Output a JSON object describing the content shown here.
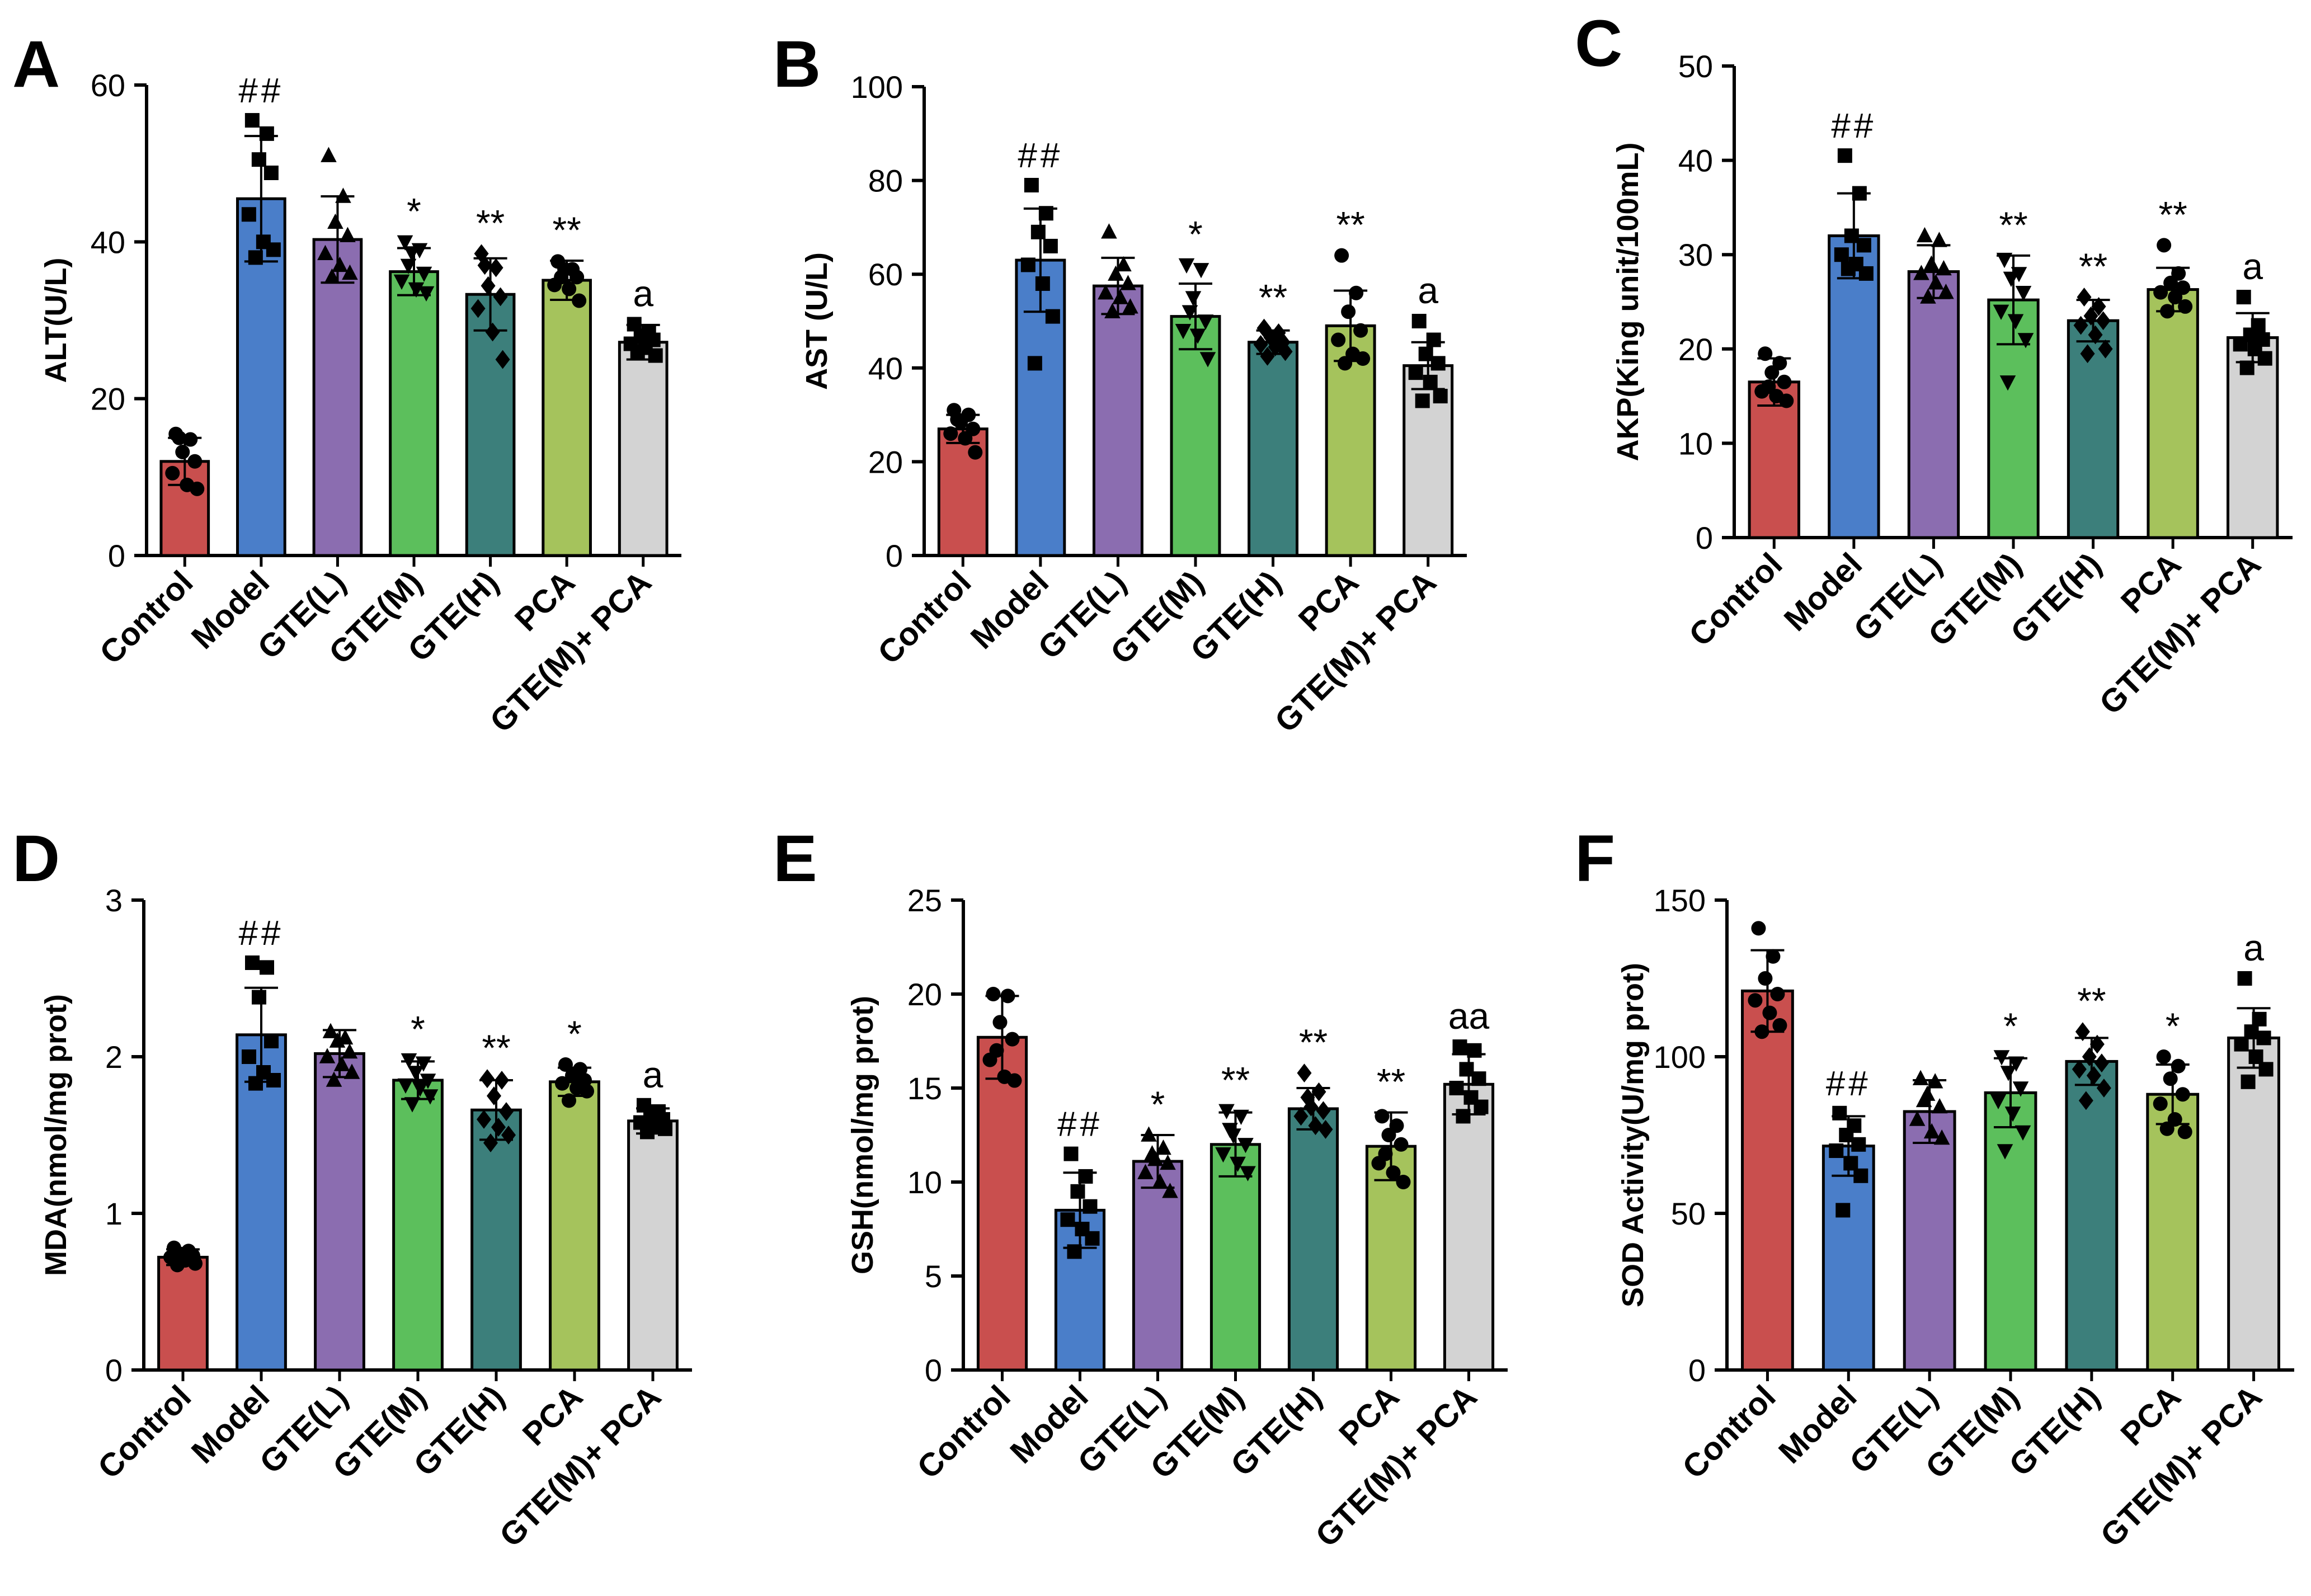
{
  "colors": {
    "Control": "#c94f4e",
    "Model": "#4a7ec9",
    "GTE(L)": "#8b6db0",
    "GTE(M)": "#5cbf5c",
    "GTE(H)": "#3c7f7b",
    "PCA": "#a5c35c",
    "GTE(M)+ PCA": "#d3d3d3"
  },
  "chart_data": [
    {
      "type": "bar",
      "panel": "A",
      "ylabel": "ALT(U/L)",
      "ylim": [
        0,
        60
      ],
      "yticks": [
        "0",
        "20",
        "40",
        "60"
      ],
      "categories": [
        "Control",
        "Model",
        "GTE(L)",
        "GTE(M)",
        "GTE(H)",
        "PCA",
        "GTE(M)+ PCA"
      ],
      "values": [
        12,
        45.5,
        40.3,
        36.2,
        33.3,
        35.1,
        27.2
      ],
      "errors": [
        3,
        8,
        5.5,
        3,
        4.6,
        2.5,
        2.2
      ],
      "markers": [
        "circle",
        "square",
        "triangle",
        "triangle-down",
        "diamond",
        "circle",
        "square"
      ],
      "points": [
        [
          15.5,
          14.8,
          13.2,
          12,
          10.5,
          9,
          8.5,
          15
        ],
        [
          55.5,
          53.8,
          50.5,
          48.8,
          43.5,
          40,
          39,
          38
        ],
        [
          51,
          45.8,
          42.5,
          40.8,
          38.5,
          37,
          36,
          35.5
        ],
        [
          40,
          39,
          38.6,
          36,
          35,
          34,
          33.5,
          37
        ],
        [
          38.5,
          36.7,
          34.4,
          33,
          31.5,
          28.5,
          25,
          37
        ],
        [
          37.5,
          36.5,
          36.5,
          35.5,
          34.5,
          34,
          32.5,
          35.5
        ],
        [
          29.5,
          28.5,
          28,
          27.5,
          27,
          26.5,
          25.5,
          26
        ]
      ],
      "significance": [
        "",
        "##",
        "",
        "*",
        "**",
        "**",
        "a"
      ]
    },
    {
      "type": "bar",
      "panel": "B",
      "ylabel": "AST (U/L)",
      "ylim": [
        0,
        100
      ],
      "yticks": [
        "0",
        "20",
        "40",
        "60",
        "80",
        "100"
      ],
      "categories": [
        "Control",
        "Model",
        "GTE(L)",
        "GTE(M)",
        "GTE(H)",
        "PCA",
        "GTE(M)+ PCA"
      ],
      "values": [
        27,
        63,
        57.5,
        51,
        45.5,
        49,
        40.5
      ],
      "errors": [
        3,
        11,
        6,
        7,
        2.5,
        7.5,
        5
      ],
      "markers": [
        "circle",
        "square",
        "triangle",
        "triangle-down",
        "diamond",
        "circle",
        "square"
      ],
      "points": [
        [
          31,
          30,
          28.5,
          27,
          26,
          25,
          22,
          29
        ],
        [
          79,
          73,
          69,
          66,
          62,
          58,
          51,
          41
        ],
        [
          69,
          62,
          60,
          58,
          56,
          55,
          53,
          52
        ],
        [
          62,
          61,
          55,
          50,
          48,
          47,
          42,
          52
        ],
        [
          48.5,
          47.5,
          46.5,
          45.5,
          45,
          44.5,
          43.5,
          42.5
        ],
        [
          64,
          56,
          52,
          48,
          46,
          43,
          42,
          41
        ],
        [
          50,
          46,
          43,
          41,
          39,
          37,
          34,
          33
        ]
      ],
      "significance": [
        "",
        "##",
        "",
        "*",
        "**",
        "**",
        "a"
      ]
    },
    {
      "type": "bar",
      "panel": "C",
      "ylabel": "AKP(King unit/100mL)",
      "ylim": [
        0,
        50
      ],
      "yticks": [
        "0",
        "10",
        "20",
        "30",
        "40",
        "50"
      ],
      "categories": [
        "Control",
        "Model",
        "GTE(L)",
        "GTE(M)",
        "GTE(H)",
        "PCA",
        "GTE(M)+ PCA"
      ],
      "values": [
        16.5,
        32,
        28.2,
        25.2,
        23,
        26.3,
        21.2
      ],
      "errors": [
        2.5,
        4.5,
        2.8,
        4.7,
        2.2,
        2.3,
        2.6
      ],
      "markers": [
        "circle",
        "square",
        "triangle",
        "triangle-down",
        "diamond",
        "circle",
        "square"
      ],
      "points": [
        [
          19.5,
          18.5,
          17.5,
          16.5,
          15.5,
          15,
          14.5,
          16
        ],
        [
          40.5,
          36.5,
          32,
          31,
          30,
          29,
          28,
          28.5
        ],
        [
          32,
          31.5,
          29,
          28.5,
          28,
          27,
          26,
          25.5
        ],
        [
          29.5,
          28,
          27.5,
          26,
          24,
          23,
          21,
          16.5
        ],
        [
          25.5,
          24.5,
          23.5,
          23,
          22.5,
          21.5,
          20,
          19.5
        ],
        [
          31,
          28,
          27,
          26.5,
          26,
          25.5,
          24.5,
          24
        ],
        [
          25.5,
          22.5,
          21.5,
          21,
          20.5,
          20,
          19,
          18
        ]
      ],
      "significance": [
        "",
        "##",
        "",
        "**",
        "**",
        "**",
        "a"
      ]
    },
    {
      "type": "bar",
      "panel": "D",
      "ylabel": "MDA(nmol/mg prot)",
      "ylim": [
        0,
        3
      ],
      "yticks": [
        "0",
        "1",
        "2",
        "3"
      ],
      "categories": [
        "Control",
        "Model",
        "GTE(L)",
        "GTE(M)",
        "GTE(H)",
        "PCA",
        "GTE(M)+ PCA"
      ],
      "values": [
        0.72,
        2.14,
        2.02,
        1.85,
        1.66,
        1.84,
        1.59
      ],
      "errors": [
        0.05,
        0.3,
        0.15,
        0.12,
        0.19,
        0.09,
        0.08
      ],
      "markers": [
        "circle",
        "square",
        "triangle",
        "triangle-down",
        "diamond",
        "circle",
        "square"
      ],
      "points": [
        [
          0.78,
          0.76,
          0.74,
          0.73,
          0.72,
          0.7,
          0.68,
          0.67
        ],
        [
          2.6,
          2.57,
          2.38,
          2.1,
          2,
          1.9,
          1.85,
          1.83
        ],
        [
          2.16,
          2.12,
          2.1,
          2.03,
          2,
          1.95,
          1.9,
          1.85
        ],
        [
          1.98,
          1.96,
          1.9,
          1.85,
          1.82,
          1.8,
          1.75,
          1.7
        ],
        [
          1.86,
          1.85,
          1.75,
          1.65,
          1.6,
          1.55,
          1.5,
          1.45
        ],
        [
          1.95,
          1.92,
          1.88,
          1.85,
          1.83,
          1.8,
          1.78,
          1.72
        ],
        [
          1.69,
          1.65,
          1.62,
          1.6,
          1.58,
          1.56,
          1.54,
          1.52
        ]
      ],
      "significance": [
        "",
        "##",
        "",
        "*",
        "**",
        "*",
        "a"
      ]
    },
    {
      "type": "bar",
      "panel": "E",
      "ylabel": "GSH(nmol/mg prot)",
      "ylim": [
        0,
        25
      ],
      "yticks": [
        "0",
        "5",
        "10",
        "15",
        "20",
        "25"
      ],
      "categories": [
        "Control",
        "Model",
        "GTE(L)",
        "GTE(M)",
        "GTE(H)",
        "PCA",
        "GTE(M)+ PCA"
      ],
      "values": [
        17.7,
        8.5,
        11.1,
        12,
        13.9,
        11.9,
        15.2
      ],
      "errors": [
        2.2,
        2,
        1.4,
        1.7,
        1.1,
        1.8,
        1.6
      ],
      "markers": [
        "circle",
        "square",
        "triangle",
        "triangle-down",
        "diamond",
        "circle",
        "square"
      ],
      "points": [
        [
          20,
          19.9,
          18.5,
          17.6,
          16.5,
          15.6,
          15.4,
          17
        ],
        [
          11.5,
          10.3,
          9.5,
          8.7,
          8,
          7.5,
          7,
          6.3
        ],
        [
          12.5,
          11.8,
          11.2,
          11,
          10.5,
          10,
          9.5,
          11.5
        ],
        [
          13.8,
          13.5,
          12.5,
          12,
          11.5,
          11,
          10.5,
          12.8
        ],
        [
          15.8,
          14.8,
          14,
          13.8,
          13.5,
          13,
          12.8,
          14.5
        ],
        [
          13.5,
          13,
          12.5,
          12,
          11,
          10.5,
          10,
          11.5
        ],
        [
          17.2,
          17,
          16,
          15.5,
          15,
          14.5,
          14,
          13.5
        ]
      ],
      "significance": [
        "",
        "##",
        "*",
        "**",
        "**",
        "**",
        "aa"
      ]
    },
    {
      "type": "bar",
      "panel": "F",
      "ylabel": "SOD Activity(U/mg prot)",
      "ylim": [
        0,
        150
      ],
      "yticks": [
        "0",
        "50",
        "100",
        "150"
      ],
      "categories": [
        "Control",
        "Model",
        "GTE(L)",
        "GTE(M)",
        "GTE(H)",
        "PCA",
        "GTE(M)+ PCA"
      ],
      "values": [
        121,
        71.5,
        82.5,
        88.5,
        98.5,
        88,
        106
      ],
      "errors": [
        13,
        9.5,
        10,
        11,
        7.5,
        9.5,
        9.5
      ],
      "markers": [
        "circle",
        "square",
        "triangle",
        "triangle-down",
        "diamond",
        "circle",
        "square"
      ],
      "points": [
        [
          141,
          132,
          125,
          120,
          118,
          114,
          110,
          108
        ],
        [
          82,
          78,
          75,
          72,
          70,
          66,
          62,
          51
        ],
        [
          93,
          92,
          88,
          84,
          80,
          76,
          74,
          86
        ],
        [
          100,
          98,
          95,
          90,
          86,
          82,
          76,
          70
        ],
        [
          108,
          104,
          100,
          98,
          96,
          94,
          90,
          86
        ],
        [
          100,
          97,
          93,
          88,
          85,
          80,
          76,
          77
        ],
        [
          125,
          112,
          108,
          106,
          104,
          100,
          96,
          92
        ]
      ],
      "significance": [
        "",
        "##",
        "",
        "*",
        "**",
        "*",
        "a"
      ]
    }
  ]
}
